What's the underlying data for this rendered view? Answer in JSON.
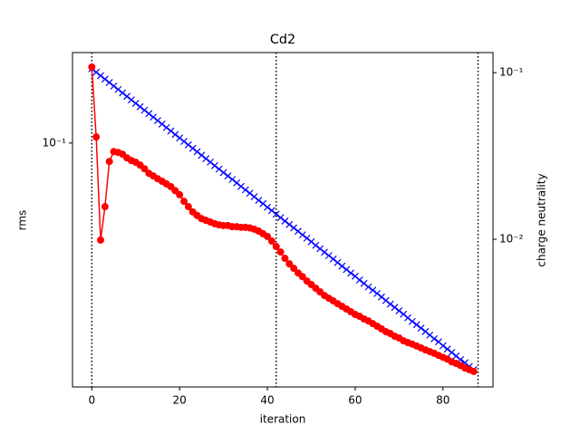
{
  "chart_data": {
    "type": "line",
    "title": "Cd2",
    "xlabel": "iteration",
    "ylabel": "rms",
    "y2label": "charge neutrality",
    "ylabel_color": "#0000ff",
    "y2label_color": "#ff0000",
    "x": [
      0,
      1,
      2,
      3,
      4,
      5,
      6,
      7,
      8,
      9,
      10,
      11,
      12,
      13,
      14,
      15,
      16,
      17,
      18,
      19,
      20,
      21,
      22,
      23,
      24,
      25,
      26,
      27,
      28,
      29,
      30,
      31,
      32,
      33,
      34,
      35,
      36,
      37,
      38,
      39,
      40,
      41,
      42,
      43,
      44,
      45,
      46,
      47,
      48,
      49,
      50,
      51,
      52,
      53,
      54,
      55,
      56,
      57,
      58,
      59,
      60,
      61,
      62,
      63,
      64,
      65,
      66,
      67,
      68,
      69,
      70,
      71,
      72,
      73,
      74,
      75,
      76,
      77,
      78,
      79,
      80,
      81,
      82,
      83,
      84,
      85,
      86,
      87
    ],
    "series": [
      {
        "name": "rms",
        "color": "#0000ff",
        "marker": "x",
        "axis": "y",
        "values": [
          0.1875,
          0.1821,
          0.1768,
          0.1717,
          0.1668,
          0.162,
          0.1573,
          0.1528,
          0.1484,
          0.1441,
          0.1399,
          0.1359,
          0.132,
          0.1282,
          0.1245,
          0.1209,
          0.1174,
          0.114,
          0.1107,
          0.1075,
          0.1044,
          0.1014,
          0.0985,
          0.0956,
          0.0929,
          0.0902,
          0.0876,
          0.0851,
          0.0826,
          0.0802,
          0.0779,
          0.0757,
          0.0735,
          0.0714,
          0.0693,
          0.0673,
          0.0654,
          0.0635,
          0.0616,
          0.0599,
          0.0581,
          0.0565,
          0.0548,
          0.0532,
          0.0517,
          0.0502,
          0.0488,
          0.0474,
          0.046,
          0.0447,
          0.0434,
          0.0421,
          0.0409,
          0.0397,
          0.0386,
          0.0375,
          0.0364,
          0.0353,
          0.0343,
          0.0333,
          0.0324,
          0.0314,
          0.0305,
          0.0296,
          0.0288,
          0.028,
          0.0272,
          0.0264,
          0.0256,
          0.0249,
          0.0242,
          0.0235,
          0.0228,
          0.0221,
          0.0215,
          0.0209,
          0.0203,
          0.0197,
          0.0191,
          0.0186,
          0.018,
          0.0175,
          0.017,
          0.0165,
          0.016,
          0.0156,
          0.0151,
          0.0147
        ]
      },
      {
        "name": "charge neutrality",
        "color": "#ff0000",
        "marker": "o",
        "axis": "y2",
        "values": [
          0.108,
          0.0411,
          0.0099,
          0.0157,
          0.0293,
          0.0336,
          0.0332,
          0.0324,
          0.0308,
          0.0297,
          0.029,
          0.0279,
          0.0265,
          0.0249,
          0.024,
          0.0231,
          0.0223,
          0.0215,
          0.0207,
          0.0196,
          0.0185,
          0.0169,
          0.0157,
          0.0146,
          0.0139,
          0.0133,
          0.013,
          0.0127,
          0.0124,
          0.0122,
          0.0121,
          0.0121,
          0.0119,
          0.0119,
          0.0118,
          0.0118,
          0.0117,
          0.0115,
          0.0112,
          0.0108,
          0.0104,
          0.00976,
          0.00905,
          0.00839,
          0.00769,
          0.00713,
          0.0067,
          0.00628,
          0.00597,
          0.00562,
          0.00535,
          0.00509,
          0.00484,
          0.0046,
          0.00443,
          0.00427,
          0.00411,
          0.00396,
          0.00382,
          0.00368,
          0.00354,
          0.00345,
          0.00333,
          0.00324,
          0.00312,
          0.00301,
          0.0029,
          0.00279,
          0.00272,
          0.00262,
          0.00256,
          0.00246,
          0.0024,
          0.00235,
          0.00229,
          0.00223,
          0.00217,
          0.00212,
          0.00207,
          0.00201,
          0.00196,
          0.00191,
          0.00184,
          0.0018,
          0.00175,
          0.00169,
          0.00165,
          0.00161
        ]
      }
    ],
    "vlines": [
      0,
      42,
      88
    ],
    "xlim": [
      -4.4,
      91.4
    ],
    "xticks": [
      0,
      20,
      40,
      60,
      80
    ],
    "ylim": [
      0.0127,
      0.215
    ],
    "yticks": [
      {
        "value": 0.1,
        "label": "10⁻¹"
      }
    ],
    "ylog": true,
    "y2lim": [
      0.0013,
      0.132
    ],
    "y2ticks": [
      {
        "value": 0.1,
        "label": "10⁻¹"
      },
      {
        "value": 0.01,
        "label": "10⁻²"
      }
    ],
    "y2log": true
  }
}
